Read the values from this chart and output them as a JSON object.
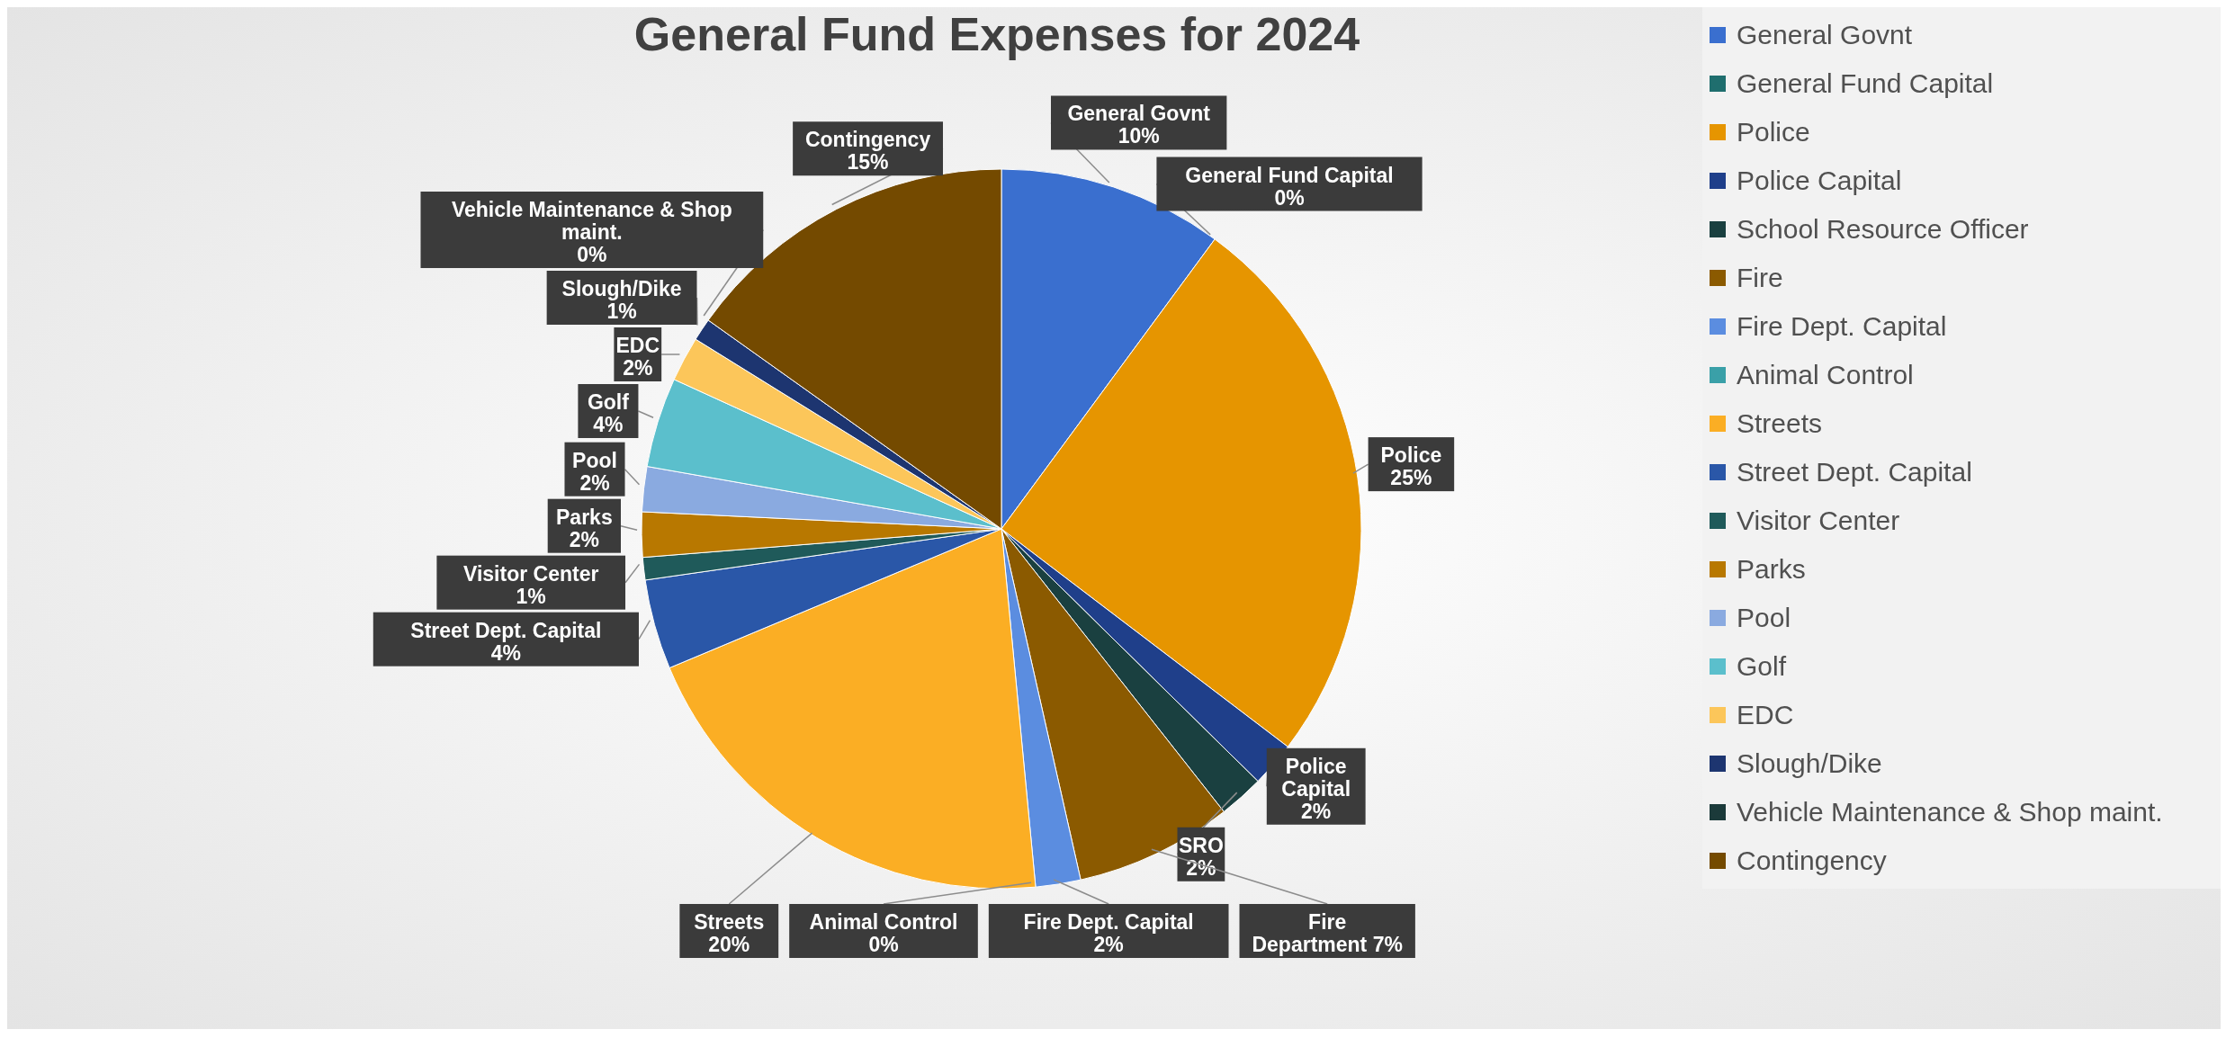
{
  "chart_data": {
    "type": "pie",
    "title": "General Fund Expenses for 2024",
    "categories": [
      "General Govnt",
      "General Fund Capital",
      "Police",
      "Police Capital",
      "School Resource Officer",
      "Fire",
      "Fire Dept. Capital",
      "Animal Control",
      "Streets",
      "Street Dept. Capital",
      "Visitor Center",
      "Parks",
      "Pool",
      "Golf",
      "EDC",
      "Slough/Dike",
      "Vehicle Maintenance & Shop maint.",
      "Contingency"
    ],
    "values": [
      10,
      0,
      25,
      2,
      2,
      7,
      2,
      0,
      20,
      4,
      1,
      2,
      2,
      4,
      2,
      1,
      0,
      15
    ],
    "colors": [
      "#3a6fcf",
      "#1f6e6e",
      "#e69500",
      "#1f3f8a",
      "#1a4040",
      "#8b5a00",
      "#5b8de0",
      "#3aa0a8",
      "#fbae24",
      "#2a57a8",
      "#1f5a5a",
      "#b87800",
      "#8aaae0",
      "#5bbfcc",
      "#fcc65a",
      "#1d3570",
      "#1b3a3a",
      "#744a00"
    ],
    "value_labels": [
      "General Govnt\n10%",
      "General Fund Capital\n0%",
      "Police\n25%",
      "Police\nCapital\n2%",
      "SRO\n2%",
      "Fire\nDepartment 7%",
      "Fire Dept. Capital\n2%",
      "Animal Control\n0%",
      "Streets\n20%",
      "Street Dept. Capital\n4%",
      "Visitor Center\n1%",
      "Parks\n2%",
      "Pool\n2%",
      "Golf\n4%",
      "EDC\n2%",
      "Slough/Dike\n1%",
      "Vehicle Maintenance & Shop\nmaint.\n0%",
      "Contingency\n15%"
    ],
    "legend": "top right"
  }
}
